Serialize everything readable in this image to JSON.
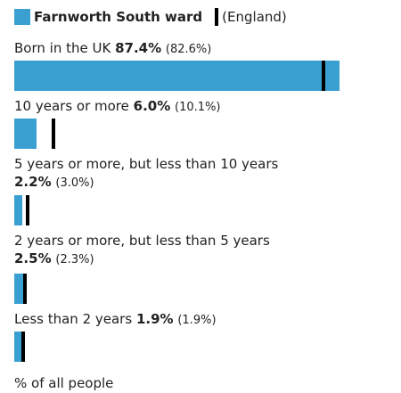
{
  "legend": {
    "area": "Farnworth South ward",
    "comparison": "(England)"
  },
  "colors": {
    "bar": "#3aa0d2",
    "marker": "#000000"
  },
  "chart_data": {
    "type": "bar",
    "orientation": "horizontal",
    "unit": "%",
    "xlim": [
      0,
      100
    ],
    "categories": [
      "Born in the UK",
      "10 years or more",
      "5 years or more, but less than 10 years",
      "2 years or more, but less than 5 years",
      "Less than 2 years"
    ],
    "series": [
      {
        "name": "Farnworth South ward",
        "values": [
          87.4,
          6.0,
          2.2,
          2.5,
          1.9
        ]
      },
      {
        "name": "England",
        "values": [
          82.6,
          10.1,
          3.0,
          2.3,
          1.9
        ]
      }
    ],
    "value_labels": [
      "87.4%",
      "6.0%",
      "2.2%",
      "2.5%",
      "1.9%"
    ],
    "comparison_labels": [
      "(82.6%)",
      "(10.1%)",
      "(3.0%)",
      "(2.3%)",
      "(1.9%)"
    ],
    "xlabel": "% of all people"
  }
}
